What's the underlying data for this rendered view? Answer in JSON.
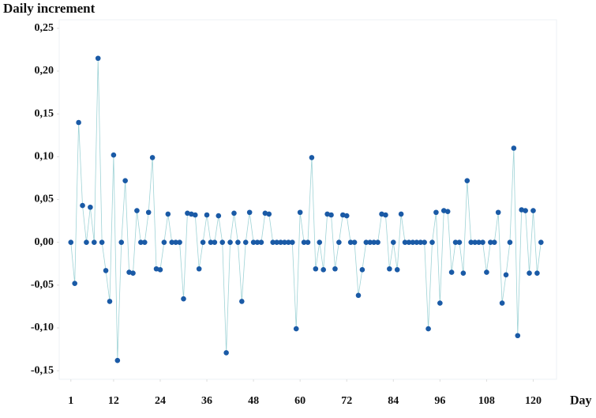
{
  "chart_data": {
    "type": "line",
    "title": "Daily increment",
    "x_label": "Day",
    "x": [
      1,
      2,
      3,
      4,
      5,
      6,
      7,
      8,
      9,
      10,
      11,
      12,
      13,
      14,
      15,
      16,
      17,
      18,
      19,
      20,
      21,
      22,
      23,
      24,
      25,
      26,
      27,
      28,
      29,
      30,
      31,
      32,
      33,
      34,
      35,
      36,
      37,
      38,
      39,
      40,
      41,
      42,
      43,
      44,
      45,
      46,
      47,
      48,
      49,
      50,
      51,
      52,
      53,
      54,
      55,
      56,
      57,
      58,
      59,
      60,
      61,
      62,
      63,
      64,
      65,
      66,
      67,
      68,
      69,
      70,
      71,
      72,
      73,
      74,
      75,
      76,
      77,
      78,
      79,
      80,
      81,
      82,
      83,
      84,
      85,
      86,
      87,
      88,
      89,
      90,
      91,
      92,
      93,
      94,
      95,
      96,
      97,
      98,
      99,
      100,
      101,
      102,
      103,
      104,
      105,
      106,
      107,
      108,
      109,
      110,
      111,
      112,
      113,
      114,
      115,
      116,
      117,
      118,
      119,
      120,
      121,
      122
    ],
    "values": [
      0,
      -0.048,
      0.14,
      0.043,
      0,
      0.041,
      0,
      0.215,
      0,
      -0.033,
      -0.069,
      0.102,
      -0.138,
      0,
      0.072,
      -0.035,
      -0.036,
      0.037,
      0,
      0,
      0.035,
      0.099,
      -0.031,
      -0.032,
      0,
      0.033,
      0,
      0,
      0,
      -0.066,
      0.034,
      0.033,
      0.032,
      -0.031,
      0,
      0.032,
      0,
      0,
      0.031,
      0,
      -0.129,
      0,
      0.034,
      0,
      -0.069,
      0,
      0.035,
      0,
      0,
      0,
      0.034,
      0.033,
      0,
      0,
      0,
      0,
      0,
      0,
      -0.101,
      0.035,
      0,
      0,
      0.099,
      -0.031,
      0,
      -0.032,
      0.033,
      0.032,
      -0.031,
      0,
      0.032,
      0.031,
      0,
      0,
      -0.062,
      -0.032,
      0,
      0,
      0,
      0,
      0.033,
      0.032,
      -0.031,
      0,
      -0.032,
      0.033,
      0,
      0,
      0,
      0,
      0,
      0,
      -0.101,
      0,
      0.035,
      -0.071,
      0.037,
      0.036,
      -0.035,
      0,
      0,
      -0.036,
      0.072,
      0,
      0,
      0,
      0,
      -0.035,
      0,
      0,
      0.035,
      -0.071,
      -0.038,
      0,
      0.11,
      -0.109,
      0.038,
      0.037,
      -0.036,
      0.037,
      -0.036,
      0
    ],
    "marker_color": "#1a5aa6",
    "line_color": "#9fd3d6",
    "xlim": [
      -2,
      126
    ],
    "ylim": [
      -0.16,
      0.26
    ],
    "xticks": [
      1,
      12,
      24,
      36,
      48,
      60,
      72,
      84,
      96,
      108,
      120
    ],
    "yticks": [
      {
        "value": 0.25,
        "label": "0,25"
      },
      {
        "value": 0.2,
        "label": "0,20"
      },
      {
        "value": 0.15,
        "label": "0,15"
      },
      {
        "value": 0.1,
        "label": "0,10"
      },
      {
        "value": 0.05,
        "label": "0,05"
      },
      {
        "value": 0,
        "label": "0,00"
      },
      {
        "value": -0.05,
        "label": "-0,05"
      },
      {
        "value": -0.1,
        "label": "-0,10"
      },
      {
        "value": -0.15,
        "label": "-0,15"
      }
    ]
  }
}
